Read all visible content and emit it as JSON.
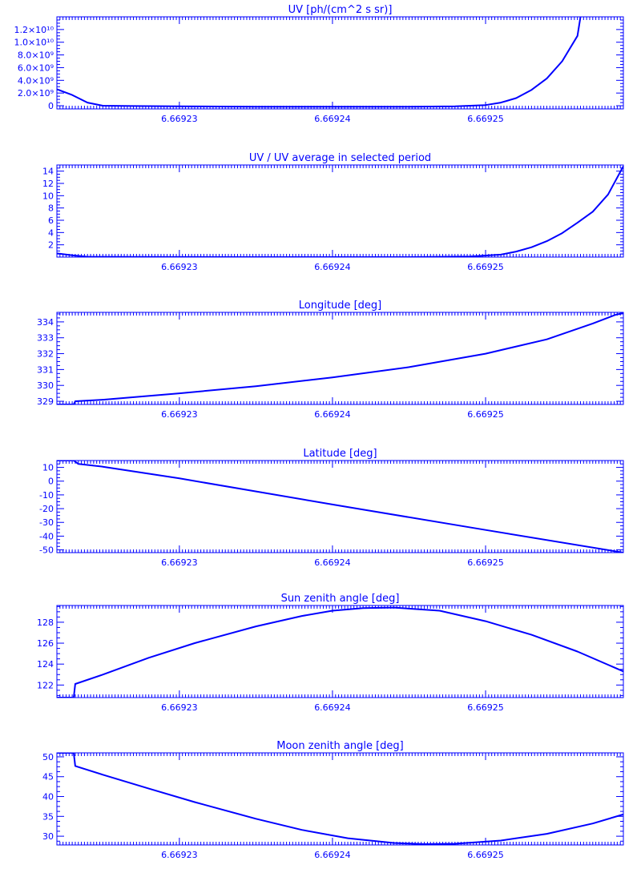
{
  "colors": {
    "line": "#0000ff",
    "background": "#ffffff"
  },
  "x_tick_labels": [
    "6.66923",
    "6.66924",
    "6.66925"
  ],
  "chart_data": [
    {
      "type": "line",
      "title": "UV [ph/(cm^2 s sr)]",
      "xlabel": "",
      "ylabel": "",
      "x_ticks": [
        6.66923,
        6.66924,
        6.66925
      ],
      "xlim": [
        6.669222,
        6.669259
      ],
      "ylim": [
        -500000000,
        14000000000
      ],
      "y_ticks": [
        0,
        2000000000,
        4000000000,
        6000000000,
        8000000000,
        10000000000,
        12000000000
      ],
      "y_tick_labels": [
        "0",
        "2.0×10⁹",
        "4.0×10⁹",
        "6.0×10⁹",
        "8.0×10⁹",
        "1.0×10¹⁰",
        "1.2×10¹⁰"
      ],
      "grid": false,
      "series": [
        {
          "x": [
            6.669222,
            6.669223,
            6.669224,
            6.669225,
            6.669227,
            6.66923,
            6.669235,
            6.66924,
            6.669245,
            6.669248,
            6.66925,
            6.669251,
            6.669252,
            6.669253,
            6.669254,
            6.669255,
            6.669256,
            6.6692562
          ],
          "y": [
            2600000000,
            1700000000,
            500000000,
            0,
            -50000000,
            -100000000,
            -150000000,
            -150000000,
            -150000000,
            -80000000,
            100000000,
            500000000,
            1200000000,
            2500000000,
            4300000000,
            7000000000,
            11000000000,
            14000000000
          ]
        }
      ]
    },
    {
      "type": "line",
      "title": "UV / UV average in selected period",
      "xlabel": "",
      "ylabel": "",
      "x_ticks": [
        6.66923,
        6.66924,
        6.66925
      ],
      "xlim": [
        6.669222,
        6.669259
      ],
      "ylim": [
        0,
        15
      ],
      "y_ticks": [
        2,
        4,
        6,
        8,
        10,
        12,
        14
      ],
      "y_tick_labels": [
        "2",
        "4",
        "6",
        "8",
        "10",
        "12",
        "14"
      ],
      "grid": false,
      "series": [
        {
          "x": [
            6.669222,
            6.669223,
            6.669224,
            6.669227,
            6.669235,
            6.669245,
            6.669249,
            6.669251,
            6.669252,
            6.669253,
            6.669254,
            6.669255,
            6.669256,
            6.669257,
            6.669258,
            6.669259
          ],
          "y": [
            0.6,
            0.3,
            0.05,
            0.02,
            0.0,
            0.0,
            0.1,
            0.4,
            0.9,
            1.6,
            2.6,
            3.9,
            5.6,
            7.4,
            10.2,
            14.8
          ]
        }
      ]
    },
    {
      "type": "line",
      "title": "Longitude [deg]",
      "xlabel": "",
      "ylabel": "",
      "x_ticks": [
        6.66923,
        6.66924,
        6.66925
      ],
      "xlim": [
        6.669222,
        6.669259
      ],
      "ylim": [
        328.8,
        334.6
      ],
      "y_ticks": [
        329,
        330,
        331,
        332,
        333,
        334
      ],
      "y_tick_labels": [
        "329",
        "330",
        "331",
        "332",
        "333",
        "334"
      ],
      "grid": false,
      "series": [
        {
          "x": [
            6.669222,
            6.6692231,
            6.6692232,
            6.669225,
            6.66923,
            6.669235,
            6.66924,
            6.669245,
            6.66925,
            6.669254,
            6.669257,
            6.6692585,
            6.669259
          ],
          "y": [
            328.8,
            328.8,
            329.0,
            329.1,
            329.5,
            329.95,
            330.5,
            331.15,
            332.0,
            332.9,
            333.9,
            334.45,
            334.55
          ]
        }
      ]
    },
    {
      "type": "line",
      "title": "Latitude [deg]",
      "xlabel": "",
      "ylabel": "",
      "x_ticks": [
        6.66923,
        6.66924,
        6.66925
      ],
      "xlim": [
        6.669222,
        6.669259
      ],
      "ylim": [
        -52,
        15
      ],
      "y_ticks": [
        -50,
        -40,
        -30,
        -20,
        -10,
        0,
        10
      ],
      "y_tick_labels": [
        "-50",
        "-40",
        "-30",
        "-20",
        "-10",
        "0",
        "10"
      ],
      "grid": false,
      "series": [
        {
          "x": [
            6.669222,
            6.6692231,
            6.6692234,
            6.669225,
            6.66923,
            6.66924,
            6.66925,
            6.669259
          ],
          "y": [
            15,
            15,
            12.5,
            10.5,
            2,
            -17,
            -35.5,
            -52
          ]
        }
      ]
    },
    {
      "type": "line",
      "title": "Sun zenith angle [deg]",
      "xlabel": "",
      "ylabel": "",
      "x_ticks": [
        6.66923,
        6.66924,
        6.66925
      ],
      "xlim": [
        6.669222,
        6.669259
      ],
      "ylim": [
        120.8,
        129.6
      ],
      "y_ticks": [
        122,
        124,
        126,
        128
      ],
      "y_tick_labels": [
        "122",
        "124",
        "126",
        "128"
      ],
      "grid": false,
      "series": [
        {
          "x": [
            6.669222,
            6.6692231,
            6.6692232,
            6.669225,
            6.669228,
            6.669231,
            6.669235,
            6.669238,
            6.66924,
            6.669242,
            6.669244,
            6.669247,
            6.66925,
            6.669253,
            6.669256,
            6.669259
          ],
          "y": [
            120.8,
            120.8,
            122.1,
            123.0,
            124.6,
            126.0,
            127.6,
            128.6,
            129.1,
            129.35,
            129.4,
            129.1,
            128.1,
            126.8,
            125.2,
            123.3
          ]
        }
      ]
    },
    {
      "type": "line",
      "title": "Moon zenith angle [deg]",
      "xlabel": "",
      "ylabel": "",
      "x_ticks": [
        6.66923,
        6.66924,
        6.66925
      ],
      "xlim": [
        6.669222,
        6.669259
      ],
      "ylim": [
        27.8,
        51
      ],
      "y_ticks": [
        30,
        35,
        40,
        45,
        50
      ],
      "y_tick_labels": [
        "30",
        "35",
        "40",
        "45",
        "50"
      ],
      "grid": false,
      "series": [
        {
          "x": [
            6.669222,
            6.6692231,
            6.6692232,
            6.669225,
            6.669228,
            6.669231,
            6.669235,
            6.669238,
            6.669241,
            6.669244,
            6.669246,
            6.669248,
            6.669251,
            6.669254,
            6.669257,
            6.669259
          ],
          "y": [
            51,
            51,
            47.7,
            45.5,
            42.0,
            38.6,
            34.4,
            31.6,
            29.5,
            28.3,
            28.0,
            28.1,
            28.9,
            30.6,
            33.2,
            35.5
          ]
        }
      ]
    }
  ]
}
